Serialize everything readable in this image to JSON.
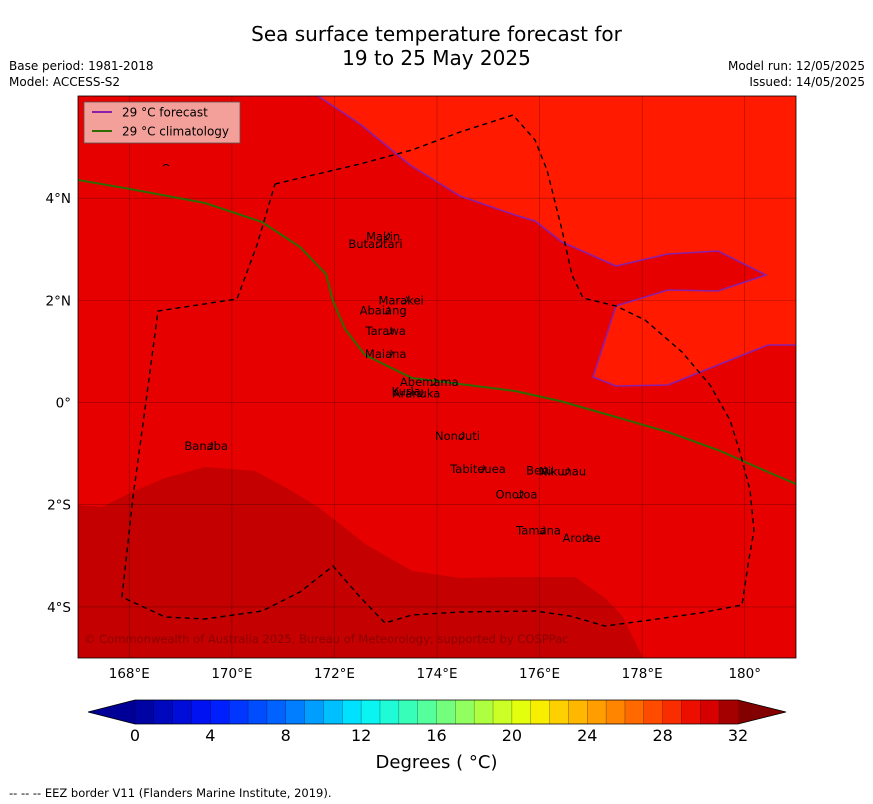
{
  "header": {
    "title_line1": "Sea surface temperature forecast for",
    "title_line2": "19 to 25 May 2025",
    "base_period": "Base period: 1981-2018",
    "model": "Model: ACCESS-S2",
    "model_run": "Model run: 12/05/2025",
    "issued": "Issued: 14/05/2025"
  },
  "map": {
    "lon_range": [
      167.0,
      181.0
    ],
    "lat_range": [
      -5.0,
      6.0
    ],
    "lon_ticks": [
      {
        "value": 168,
        "label": "168°E"
      },
      {
        "value": 170,
        "label": "170°E"
      },
      {
        "value": 172,
        "label": "172°E"
      },
      {
        "value": 174,
        "label": "174°E"
      },
      {
        "value": 176,
        "label": "176°E"
      },
      {
        "value": 178,
        "label": "178°E"
      },
      {
        "value": 180,
        "label": "180°"
      }
    ],
    "lat_ticks": [
      {
        "value": 4,
        "label": "4°N"
      },
      {
        "value": 2,
        "label": "2°N"
      },
      {
        "value": 0,
        "label": "0°"
      },
      {
        "value": -2,
        "label": "2°S"
      },
      {
        "value": -4,
        "label": "4°S"
      }
    ],
    "grid": true,
    "legend": [
      {
        "label": "29 °C  forecast",
        "color": "#8B1FA9"
      },
      {
        "label": "29 °C  climatology",
        "color": "#2E6B00"
      }
    ],
    "legend_position": "top-left",
    "copyright": "© Commonwealth of Australia 2025, Bureau of Meteorology; supported by COSPPac",
    "colors": {
      "bg_band": "#FF1A00",
      "main_band": "#E60000",
      "dark_band": "#C40000",
      "forecast_line": "#8B1FA9",
      "climatology_line": "#2E6B00",
      "legend_bg": "#F4A09A",
      "eez": "#000000"
    },
    "islands": [
      {
        "name": "Makin",
        "lon": 172.95,
        "lat": 3.25
      },
      {
        "name": "Butaritari",
        "lon": 172.8,
        "lat": 3.1
      },
      {
        "name": "Marakei",
        "lon": 173.3,
        "lat": 2.0
      },
      {
        "name": "Abaiang",
        "lon": 172.95,
        "lat": 1.8
      },
      {
        "name": "Tarawa",
        "lon": 173.0,
        "lat": 1.4
      },
      {
        "name": "Maiana",
        "lon": 173.0,
        "lat": 0.95
      },
      {
        "name": "Abemama",
        "lon": 173.85,
        "lat": 0.4
      },
      {
        "name": "Kuria",
        "lon": 173.4,
        "lat": 0.22
      },
      {
        "name": "Aranuka",
        "lon": 173.6,
        "lat": 0.18
      },
      {
        "name": "Nonouti",
        "lon": 174.4,
        "lat": -0.65
      },
      {
        "name": "Banaba",
        "lon": 169.5,
        "lat": -0.85
      },
      {
        "name": "Tabiteuea",
        "lon": 174.8,
        "lat": -1.3
      },
      {
        "name": "Beru",
        "lon": 176.0,
        "lat": -1.33
      },
      {
        "name": "Nikunau",
        "lon": 176.45,
        "lat": -1.35
      },
      {
        "name": "Onotoa",
        "lon": 175.55,
        "lat": -1.8
      },
      {
        "name": "Tamana",
        "lon": 175.98,
        "lat": -2.5
      },
      {
        "name": "Arorae",
        "lon": 176.82,
        "lat": -2.65
      }
    ]
  },
  "colorbar": {
    "min": 0,
    "max": 32,
    "step": 1,
    "tick_labels": [
      "0",
      "4",
      "8",
      "12",
      "16",
      "20",
      "24",
      "28",
      "32"
    ],
    "label": "Degrees ( °C)",
    "extend": "both"
  },
  "footer": {
    "eez_note": "--  --  -- EEZ border V11 (Flanders Marine Institute, 2019)."
  }
}
